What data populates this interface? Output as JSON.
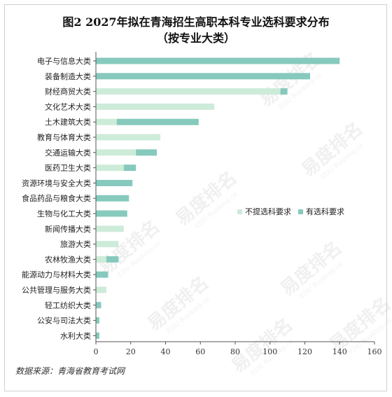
{
  "title": "图2  2027年拟在青海招生高职本科专业选科要求分布",
  "subtitle": "（按专业大类）",
  "source": "数据来源：青海省教育考试网",
  "watermark": {
    "brand": "易度排名",
    "sub": "EDU Ranking.cn"
  },
  "colors": {
    "no_req": "#cdebd9",
    "req": "#86c9bd",
    "axis": "#555555"
  },
  "chart_data": {
    "type": "bar",
    "orientation": "horizontal",
    "stacked": true,
    "categories": [
      "电子与信息大类",
      "装备制造大类",
      "财经商贸大类",
      "文化艺术大类",
      "土木建筑大类",
      "教育与体育大类",
      "交通运输大类",
      "医药卫生大类",
      "资源环境与安全大类",
      "食品药品与粮食大类",
      "生物与化工大类",
      "新闻传播大类",
      "旅游大类",
      "农林牧渔大类",
      "能源动力与材料大类",
      "公共管理与服务大类",
      "轻工纺织大类",
      "公安与司法大类",
      "水利大类"
    ],
    "series": [
      {
        "name": "不提选科要求",
        "color": "#cdebd9",
        "values": [
          0,
          0,
          106,
          68,
          12,
          37,
          23,
          16,
          0,
          0,
          0,
          16,
          13,
          6,
          0,
          6,
          0,
          0,
          0
        ]
      },
      {
        "name": "有选科要求",
        "color": "#86c9bd",
        "values": [
          140,
          123,
          4,
          0,
          47,
          0,
          12,
          7,
          21,
          19,
          18,
          0,
          0,
          7,
          7,
          0,
          3,
          2,
          2
        ]
      }
    ],
    "xlim": [
      0,
      160
    ],
    "xticks": [
      0,
      20,
      40,
      60,
      80,
      100,
      120,
      140,
      160
    ],
    "legend_position": "right",
    "grid": false
  }
}
